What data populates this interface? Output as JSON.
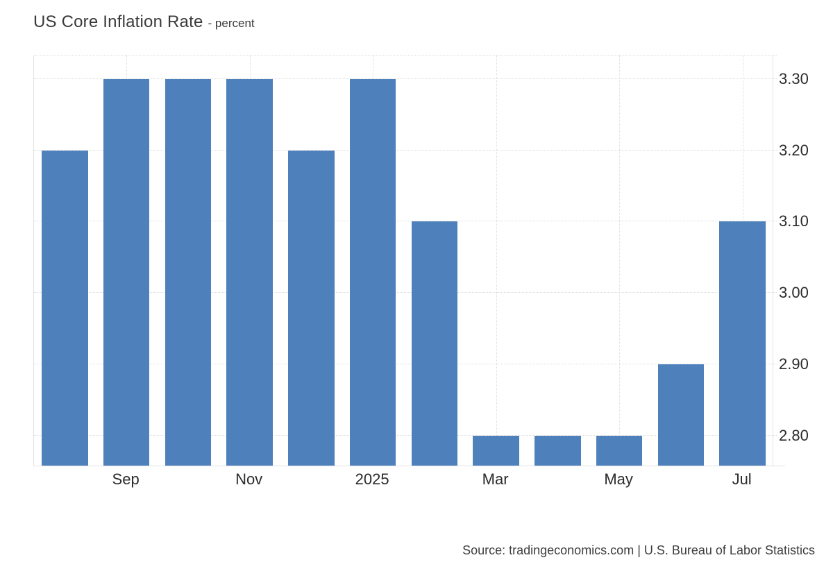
{
  "header": {
    "title": "US Core Inflation Rate",
    "subtitle": "- percent"
  },
  "source": {
    "text": "Source: tradingeconomics.com | U.S. Bureau of Labor Statistics"
  },
  "colors": {
    "bar": "#4e80bc",
    "axis_line": "#e2e2e2",
    "grid_line": "#dcdcdc",
    "tick_text": "#2b2b2b",
    "title_text": "#3a3a3a",
    "source_text": "#3d3d3d"
  },
  "chart_data": {
    "type": "bar",
    "title": "US Core Inflation Rate",
    "subtitle": "- percent",
    "ylabel": "percent",
    "categories": [
      "",
      "Sep",
      "",
      "Nov",
      "",
      "2025",
      "",
      "Mar",
      "",
      "May",
      "",
      "Jul"
    ],
    "values": [
      3.2,
      3.3,
      3.3,
      3.3,
      3.2,
      3.3,
      3.1,
      2.8,
      2.8,
      2.8,
      2.9,
      3.1
    ],
    "y_ticks": [
      "2.80",
      "2.90",
      "3.00",
      "3.10",
      "3.20",
      "3.30"
    ],
    "ylim": [
      2.757,
      3.333
    ],
    "grid": true,
    "gridline_style": "dotted",
    "legend_position": "none",
    "y_axis_side": "right",
    "bar_color": "#4e80bc"
  }
}
